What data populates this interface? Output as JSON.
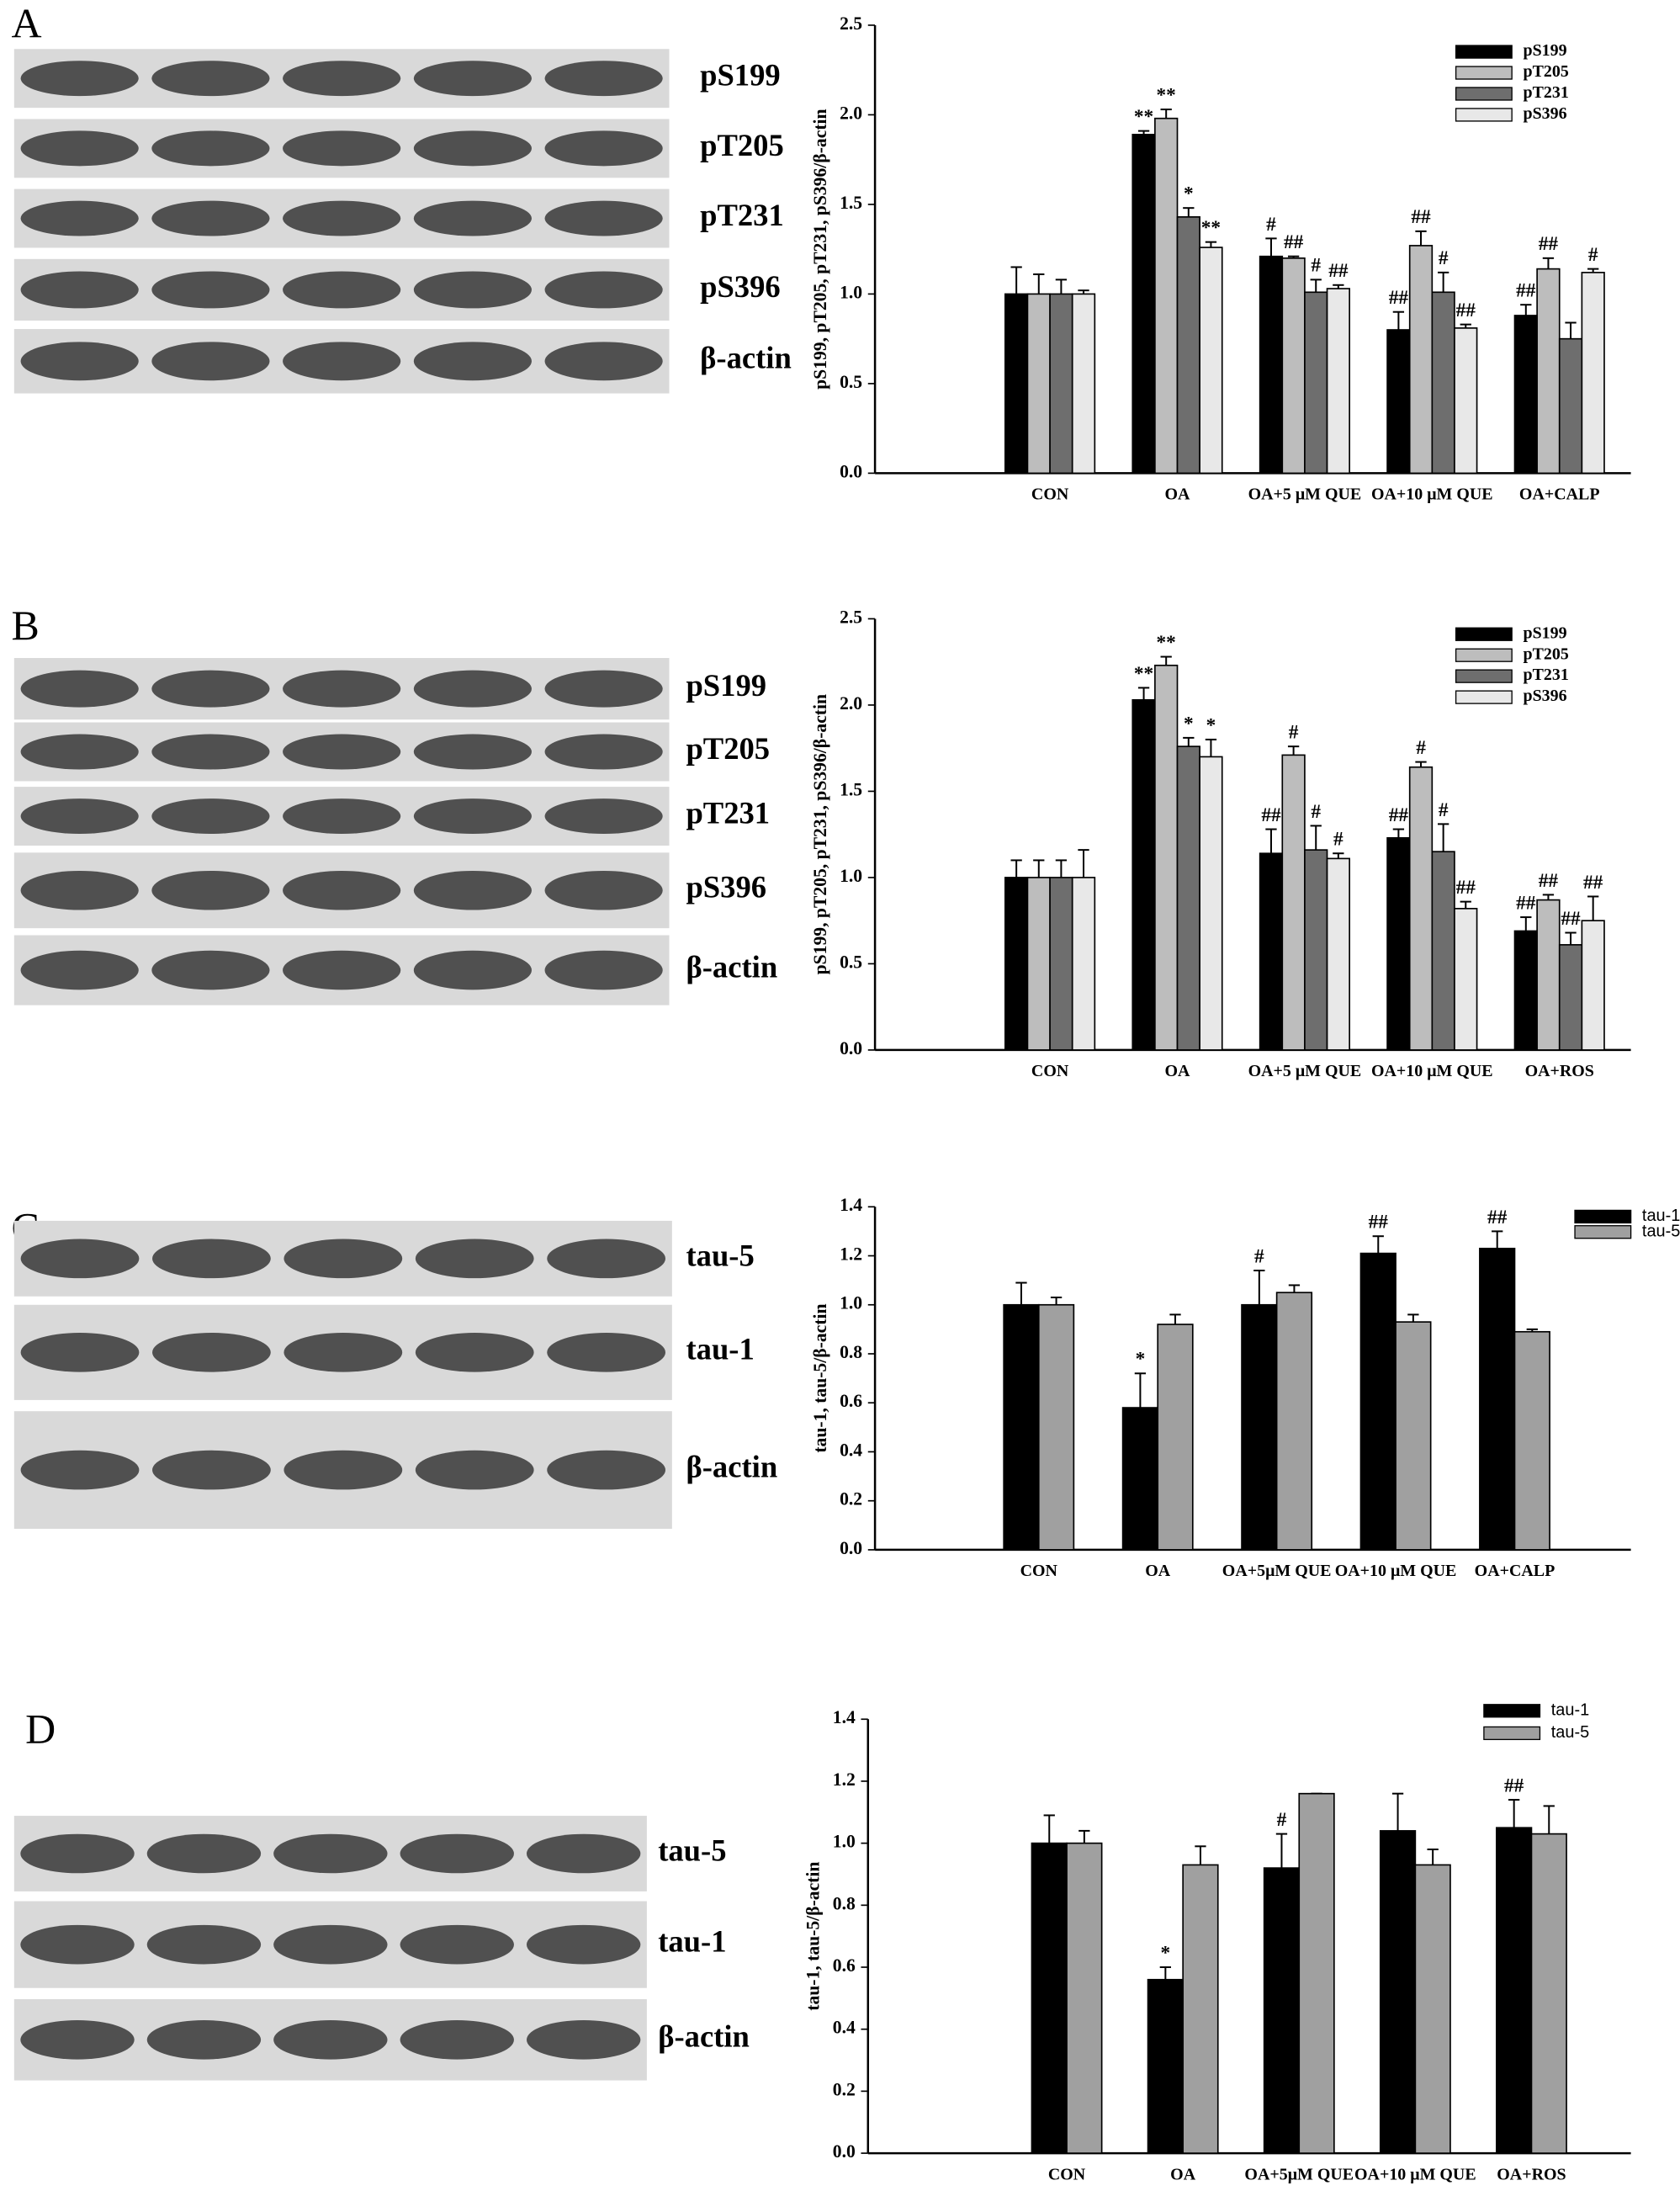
{
  "panels": [
    {
      "letter": "A",
      "blot_labels": [
        "pS199",
        "pT205",
        "pT231",
        "pS396",
        "β-actin"
      ]
    },
    {
      "letter": "B",
      "blot_labels": [
        "pS199",
        "pT205",
        "pT231",
        "pS396",
        "β-actin"
      ]
    },
    {
      "letter": "C",
      "blot_labels": [
        "tau-5",
        "tau-1",
        "β-actin"
      ]
    },
    {
      "letter": "D",
      "blot_labels": [
        "tau-5",
        "tau-1",
        "β-actin"
      ]
    }
  ],
  "chart_data": [
    {
      "type": "bar",
      "y_label": "pS199, pT205, pT231, pS396/β-actin",
      "categories": [
        "CON",
        "OA",
        "OA+5 μM QUE",
        "OA+10 μM QUE",
        "OA+CALP"
      ],
      "ylim": [
        0,
        2.5
      ],
      "yticks": [
        {
          "value": 0,
          "label": "0.0"
        },
        {
          "value": 0.5,
          "label": "0.5"
        },
        {
          "value": 1,
          "label": "1.0"
        },
        {
          "value": 1.5,
          "label": "1.5"
        },
        {
          "value": 2,
          "label": "2.0"
        },
        {
          "value": 2.5,
          "label": "2.5"
        }
      ],
      "series": [
        {
          "name": "pS199",
          "color": "#000000",
          "values": [
            1.0,
            1.89,
            1.21,
            0.8,
            0.88
          ],
          "errors": [
            0.15,
            0.02,
            0.1,
            0.1,
            0.06
          ],
          "annotations": [
            null,
            "**",
            "#",
            "##",
            "##"
          ]
        },
        {
          "name": "pT205",
          "color": "#bdbdbd",
          "values": [
            1.0,
            1.98,
            1.2,
            1.27,
            1.14
          ],
          "errors": [
            0.11,
            0.05,
            0.01,
            0.08,
            0.06
          ],
          "annotations": [
            null,
            "**",
            "##",
            "##",
            "##"
          ]
        },
        {
          "name": "pT231",
          "color": "#6e6e6e",
          "values": [
            1.0,
            1.43,
            1.01,
            1.01,
            0.75
          ],
          "errors": [
            0.08,
            0.05,
            0.07,
            0.11,
            0.09
          ],
          "annotations": [
            null,
            "*",
            "#",
            "#",
            null
          ]
        },
        {
          "name": "pS396",
          "color": "#e8e8e8",
          "values": [
            1.0,
            1.26,
            1.03,
            0.81,
            1.12
          ],
          "errors": [
            0.02,
            0.03,
            0.02,
            0.02,
            0.02
          ],
          "annotations": [
            null,
            "**",
            "##",
            "##",
            "#"
          ]
        }
      ]
    },
    {
      "type": "bar",
      "y_label": "pS199, pT205, pT231, pS396/β-actin",
      "categories": [
        "CON",
        "OA",
        "OA+5 μM QUE",
        "OA+10 μM QUE",
        "OA+ROS"
      ],
      "ylim": [
        0,
        2.5
      ],
      "yticks": [
        {
          "value": 0,
          "label": "0.0"
        },
        {
          "value": 0.5,
          "label": "0.5"
        },
        {
          "value": 1,
          "label": "1.0"
        },
        {
          "value": 1.5,
          "label": "1.5"
        },
        {
          "value": 2,
          "label": "2.0"
        },
        {
          "value": 2.5,
          "label": "2.5"
        }
      ],
      "series": [
        {
          "name": "pS199",
          "color": "#000000",
          "values": [
            1.0,
            2.03,
            1.14,
            1.23,
            0.69
          ],
          "errors": [
            0.1,
            0.07,
            0.14,
            0.05,
            0.08
          ],
          "annotations": [
            null,
            "**",
            "##",
            "##",
            "##"
          ]
        },
        {
          "name": "pT205",
          "color": "#bdbdbd",
          "values": [
            1.0,
            2.23,
            1.71,
            1.64,
            0.87
          ],
          "errors": [
            0.1,
            0.05,
            0.05,
            0.03,
            0.03
          ],
          "annotations": [
            null,
            "**",
            "#",
            "#",
            "##"
          ]
        },
        {
          "name": "pT231",
          "color": "#6e6e6e",
          "values": [
            1.0,
            1.76,
            1.16,
            1.15,
            0.61
          ],
          "errors": [
            0.1,
            0.05,
            0.14,
            0.16,
            0.07
          ],
          "annotations": [
            null,
            "*",
            "#",
            "#",
            "##"
          ]
        },
        {
          "name": "pS396",
          "color": "#e8e8e8",
          "values": [
            1.0,
            1.7,
            1.11,
            0.82,
            0.75
          ],
          "errors": [
            0.16,
            0.1,
            0.03,
            0.04,
            0.14
          ],
          "annotations": [
            null,
            "*",
            "#",
            "##",
            "##"
          ]
        }
      ]
    },
    {
      "type": "bar",
      "y_label": "tau-1, tau-5/β-actin",
      "categories": [
        "CON",
        "OA",
        "OA+5μM QUE",
        "OA+10 μM QUE",
        "OA+CALP"
      ],
      "ylim": [
        0,
        1.4
      ],
      "yticks": [
        {
          "value": 0,
          "label": "0.0"
        },
        {
          "value": 0.2,
          "label": "0.2"
        },
        {
          "value": 0.4,
          "label": "0.4"
        },
        {
          "value": 0.6,
          "label": "0.6"
        },
        {
          "value": 0.8,
          "label": "0.8"
        },
        {
          "value": 1,
          "label": "1.0"
        },
        {
          "value": 1.2,
          "label": "1.2"
        },
        {
          "value": 1.4,
          "label": "1.4"
        }
      ],
      "series": [
        {
          "name": "tau-1",
          "color": "#000000",
          "values": [
            1.0,
            0.58,
            1.0,
            1.21,
            1.23
          ],
          "errors": [
            0.09,
            0.14,
            0.14,
            0.07,
            0.07
          ],
          "annotations": [
            null,
            "*",
            "#",
            "##",
            "##"
          ]
        },
        {
          "name": "tau-5",
          "color": "#a0a0a0",
          "values": [
            1.0,
            0.92,
            1.05,
            0.93,
            0.89
          ],
          "errors": [
            0.03,
            0.04,
            0.03,
            0.03,
            0.01
          ],
          "annotations": [
            null,
            null,
            null,
            null,
            null
          ]
        }
      ]
    },
    {
      "type": "bar",
      "y_label": "tau-1, tau-5/β-actin",
      "categories": [
        "CON",
        "OA",
        "OA+5μM QUE",
        "OA+10 μM QUE",
        "OA+ROS"
      ],
      "ylim": [
        0,
        1.4
      ],
      "yticks": [
        {
          "value": 0,
          "label": "0.0"
        },
        {
          "value": 0.2,
          "label": "0.2"
        },
        {
          "value": 0.4,
          "label": "0.4"
        },
        {
          "value": 0.6,
          "label": "0.6"
        },
        {
          "value": 0.8,
          "label": "0.8"
        },
        {
          "value": 1,
          "label": "1.0"
        },
        {
          "value": 1.2,
          "label": "1.2"
        },
        {
          "value": 1.4,
          "label": "1.4"
        }
      ],
      "series": [
        {
          "name": "tau-1",
          "color": "#000000",
          "values": [
            1.0,
            0.56,
            0.92,
            1.04,
            1.05
          ],
          "errors": [
            0.09,
            0.04,
            0.11,
            0.12,
            0.09
          ],
          "annotations": [
            null,
            "*",
            "#",
            null,
            "##"
          ]
        },
        {
          "name": "tau-5",
          "color": "#a0a0a0",
          "values": [
            1.0,
            0.93,
            1.16,
            0.93,
            1.03
          ],
          "errors": [
            0.04,
            0.06,
            0,
            0.05,
            0.09
          ],
          "annotations": [
            null,
            null,
            null,
            null,
            null
          ]
        }
      ]
    }
  ]
}
